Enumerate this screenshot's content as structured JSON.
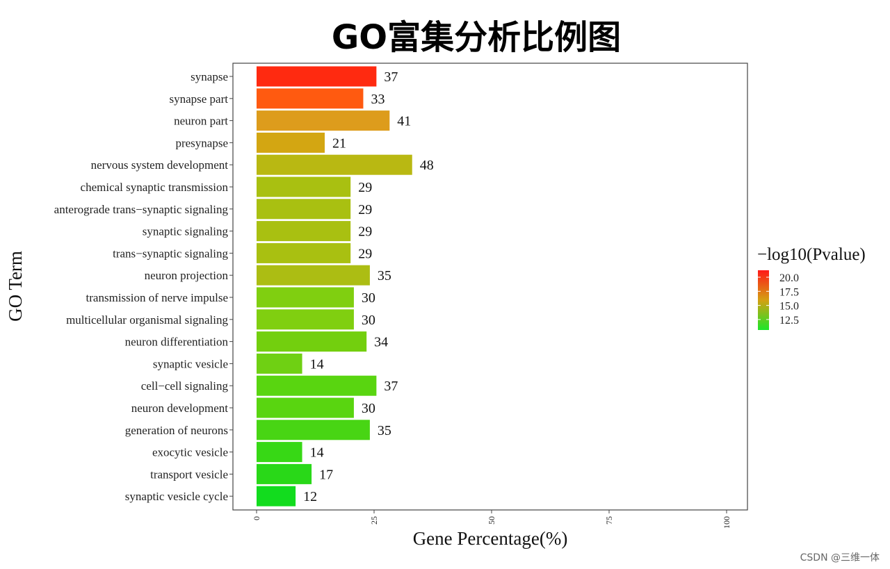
{
  "chart_data": {
    "type": "bar",
    "orientation": "horizontal",
    "title": "GO富集分析比例图",
    "xlabel": "Gene Percentage(%)",
    "ylabel": "GO Term",
    "xlim": [
      0,
      100
    ],
    "xticks": [
      "0",
      "25",
      "50",
      "75",
      "100"
    ],
    "categories": [
      "synapse",
      "synapse part",
      "neuron part",
      "presynapse",
      "nervous system development",
      "chemical synaptic transmission",
      "anterograde trans−synaptic signaling",
      "synaptic signaling",
      "trans−synaptic signaling",
      "neuron projection",
      "transmission of nerve impulse",
      "multicellular organismal signaling",
      "neuron differentiation",
      "synaptic vesicle",
      "cell−cell signaling",
      "neuron development",
      "generation of neurons",
      "exocytic vesicle",
      "transport vesicle",
      "synaptic vesicle cycle"
    ],
    "values": [
      25.5,
      22.7,
      28.3,
      14.5,
      33.1,
      20.0,
      20.0,
      20.0,
      20.0,
      24.1,
      20.7,
      20.7,
      23.4,
      9.7,
      25.5,
      20.7,
      24.1,
      9.7,
      11.7,
      8.3
    ],
    "value_labels": [
      "37",
      "33",
      "41",
      "21",
      "48",
      "29",
      "29",
      "29",
      "29",
      "35",
      "30",
      "30",
      "34",
      "14",
      "37",
      "30",
      "35",
      "14",
      "17",
      "12"
    ],
    "bar_colors": [
      "#ff2a10",
      "#ff5a10",
      "#dd9c1c",
      "#d3a612",
      "#b9b812",
      "#a9c011",
      "#a9c011",
      "#a9c011",
      "#a9c011",
      "#acbd13",
      "#80cf10",
      "#80cf10",
      "#73cf0e",
      "#6fd013",
      "#59d510",
      "#59d510",
      "#48d514",
      "#37d815",
      "#29d818",
      "#12dc1e"
    ],
    "legend": {
      "title": "−log10(Pvalue)",
      "ticks": [
        "20.0",
        "17.5",
        "15.0",
        "12.5"
      ],
      "color_high": "#ff1a1a",
      "color_mid": "#d4a012",
      "color_low": "#1de62a",
      "placement": "right"
    },
    "grid": false
  },
  "watermark": "CSDN @三维一体"
}
